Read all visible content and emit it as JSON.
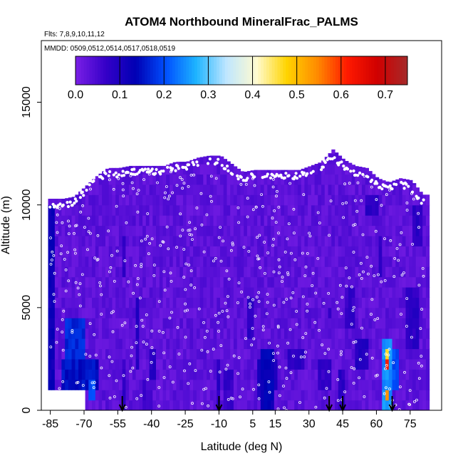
{
  "chart_data": {
    "type": "heatmap",
    "title": "ATOM4 Northbound MineralFrac_PALMS",
    "flights_label": "Flts: 7,8,9,10,11,12",
    "dates_label": "MMDD: 0509,0512,0514,0517,0518,0519",
    "xlabel": "Latitude (deg N)",
    "ylabel": "Altitude (m)",
    "xlim": [
      -89,
      89
    ],
    "ylim": [
      0,
      18000
    ],
    "x_ticks": [
      -85,
      -70,
      -55,
      -40,
      -25,
      -10,
      5,
      15,
      30,
      45,
      60,
      75
    ],
    "x_tick_labels": [
      "-85",
      "-70",
      "-55",
      "-40",
      "-25",
      "-10",
      "5",
      "15",
      "30",
      "45",
      "60",
      "75"
    ],
    "y_ticks": [
      0,
      5000,
      10000,
      15000
    ],
    "y_tick_labels": [
      "0",
      "5000",
      "10000",
      "15000"
    ],
    "colorbar": {
      "min": 0.0,
      "max": 0.75,
      "ticks": [
        0.0,
        0.1,
        0.2,
        0.3,
        0.4,
        0.5,
        0.6,
        0.7
      ],
      "tick_labels": [
        "0.0",
        "0.1",
        "0.2",
        "0.3",
        "0.4",
        "0.5",
        "0.6",
        "0.7"
      ],
      "colors": [
        "#7a1fe6",
        "#3500c8",
        "#0000b4",
        "#0050ff",
        "#1eb4ff",
        "#bfe6ff",
        "#fffbd0",
        "#ffd400",
        "#ff8c00",
        "#ff1a00",
        "#d00000",
        "#a52a2a"
      ]
    },
    "background_value": 0.03,
    "profile_top": {
      "lat": [
        -86,
        -80,
        -75,
        -70,
        -65,
        -60,
        -55,
        -50,
        -45,
        -40,
        -35,
        -30,
        -25,
        -20,
        -15,
        -10,
        -5,
        0,
        5,
        10,
        15,
        20,
        25,
        30,
        35,
        40,
        45,
        50,
        55,
        60,
        65,
        70,
        75,
        80
      ],
      "alt": [
        10300,
        10300,
        10400,
        10900,
        11400,
        11800,
        11800,
        11900,
        11900,
        11900,
        11900,
        12100,
        12100,
        12300,
        12400,
        12400,
        12000,
        11600,
        11700,
        11700,
        11700,
        11700,
        11700,
        11900,
        12100,
        12700,
        12200,
        11900,
        11800,
        11300,
        11100,
        11300,
        11200,
        10500
      ]
    },
    "enhancements": [
      {
        "lat": [
          -86,
          -84
        ],
        "alt": [
          0,
          10000
        ],
        "value": 0.12
      },
      {
        "lat": [
          -79,
          -70
        ],
        "alt": [
          2500,
          4500
        ],
        "value": 0.17
      },
      {
        "lat": [
          -81,
          -64
        ],
        "alt": [
          800,
          2500
        ],
        "value": 0.15
      },
      {
        "lat": [
          -69,
          -65
        ],
        "alt": [
          500,
          1500
        ],
        "value": 0.2
      },
      {
        "lat": [
          -78,
          -72
        ],
        "alt": [
          1500,
          2600
        ],
        "value": 0.1
      },
      {
        "lat": [
          -54,
          -52
        ],
        "alt": [
          0,
          2500
        ],
        "value": 0.07
      },
      {
        "lat": [
          -54,
          -52
        ],
        "alt": [
          6500,
          8500
        ],
        "value": 0.08
      },
      {
        "lat": [
          -48,
          -46
        ],
        "alt": [
          2000,
          5500
        ],
        "value": 0.09
      },
      {
        "lat": [
          -41,
          -38
        ],
        "alt": [
          1500,
          3000
        ],
        "value": 0.09
      },
      {
        "lat": [
          -44,
          -40
        ],
        "alt": [
          0,
          1200
        ],
        "value": 0.06
      },
      {
        "lat": [
          -12,
          -10
        ],
        "alt": [
          0,
          2500
        ],
        "value": 0.08
      },
      {
        "lat": [
          -9,
          -4
        ],
        "alt": [
          0,
          2000
        ],
        "value": 0.07
      },
      {
        "lat": [
          2,
          5
        ],
        "alt": [
          3500,
          5500
        ],
        "value": 0.08
      },
      {
        "lat": [
          6,
          8
        ],
        "alt": [
          500,
          2500
        ],
        "value": 0.1
      },
      {
        "lat": [
          8,
          14
        ],
        "alt": [
          0,
          3000
        ],
        "value": 0.13
      },
      {
        "lat": [
          12,
          16
        ],
        "alt": [
          1000,
          2500
        ],
        "value": 0.09
      },
      {
        "lat": [
          20,
          28
        ],
        "alt": [
          1800,
          3000
        ],
        "value": 0.08
      },
      {
        "lat": [
          34,
          40
        ],
        "alt": [
          1000,
          2500
        ],
        "value": 0.07
      },
      {
        "lat": [
          42,
          46
        ],
        "alt": [
          0,
          2000
        ],
        "value": 0.08
      },
      {
        "lat": [
          38,
          40
        ],
        "alt": [
          4200,
          4800
        ],
        "value": 0.07
      },
      {
        "lat": [
          50,
          56
        ],
        "alt": [
          2000,
          3500
        ],
        "value": 0.09
      },
      {
        "lat": [
          55,
          60
        ],
        "alt": [
          9500,
          10500
        ],
        "value": 0.08
      },
      {
        "lat": [
          45,
          50
        ],
        "alt": [
          4000,
          6000
        ],
        "value": 0.07
      },
      {
        "lat": [
          72,
          78
        ],
        "alt": [
          3000,
          6000
        ],
        "value": 0.08
      },
      {
        "lat": [
          75,
          80
        ],
        "alt": [
          8000,
          10000
        ],
        "value": 0.08
      },
      {
        "lat": [
          62,
          66
        ],
        "alt": [
          0,
          3500
        ],
        "value": 0.25
      },
      {
        "lat": [
          63,
          65
        ],
        "alt": [
          200,
          800
        ],
        "value": 0.55
      },
      {
        "lat": [
          63,
          65
        ],
        "alt": [
          2500,
          3000
        ],
        "value": 0.48
      },
      {
        "lat": [
          63.5,
          64.5
        ],
        "alt": [
          1800,
          2200
        ],
        "value": 0.6
      },
      {
        "lat": [
          66,
          69
        ],
        "alt": [
          600,
          2800
        ],
        "value": 0.2
      },
      {
        "lat": [
          60,
          62
        ],
        "alt": [
          6500,
          8500
        ],
        "value": 0.08
      }
    ],
    "arrows_lat": [
      -53,
      -10,
      39,
      45,
      67
    ]
  }
}
